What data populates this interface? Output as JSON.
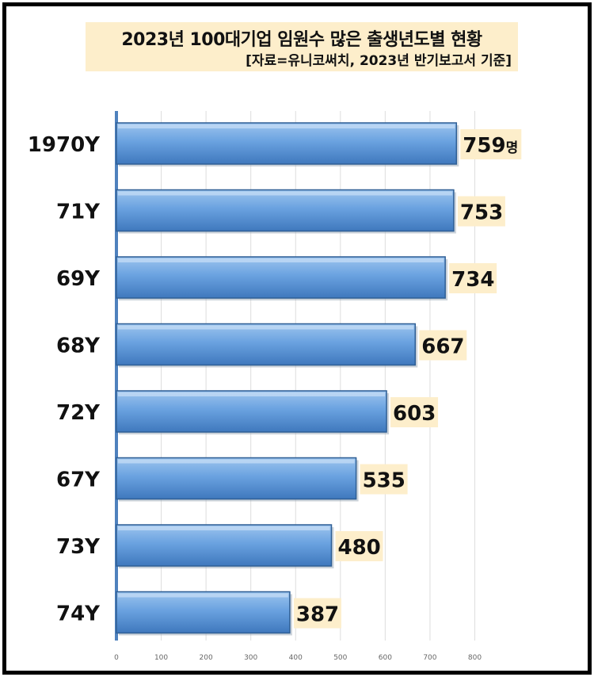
{
  "chart_data": {
    "type": "bar",
    "orientation": "horizontal",
    "title": "2023년 100대기업 임원수 많은 출생년도별 현황",
    "subtitle": "[자료=유니코써치,  2023년 반기보고서 기준]",
    "categories": [
      "1970Y",
      "71Y",
      "69Y",
      "68Y",
      "72Y",
      "67Y",
      "73Y",
      "74Y"
    ],
    "values": [
      759,
      753,
      734,
      667,
      603,
      535,
      480,
      387
    ],
    "value_labels": [
      "759",
      "753",
      "734",
      "667",
      "603",
      "535",
      "480",
      "387"
    ],
    "first_value_unit": "명",
    "xlim": [
      0,
      800
    ],
    "x_ticks": [
      "0",
      "100",
      "200",
      "300",
      "400",
      "500",
      "600",
      "700",
      "800"
    ],
    "grid": "vertical",
    "legend": "none",
    "colors": {
      "bar_fill": "#6aa2e0",
      "bar_edge": "#2f5f95",
      "label_bg": "#fdeecb",
      "axis": "#4f81bd",
      "grid": "#dddddd"
    }
  }
}
